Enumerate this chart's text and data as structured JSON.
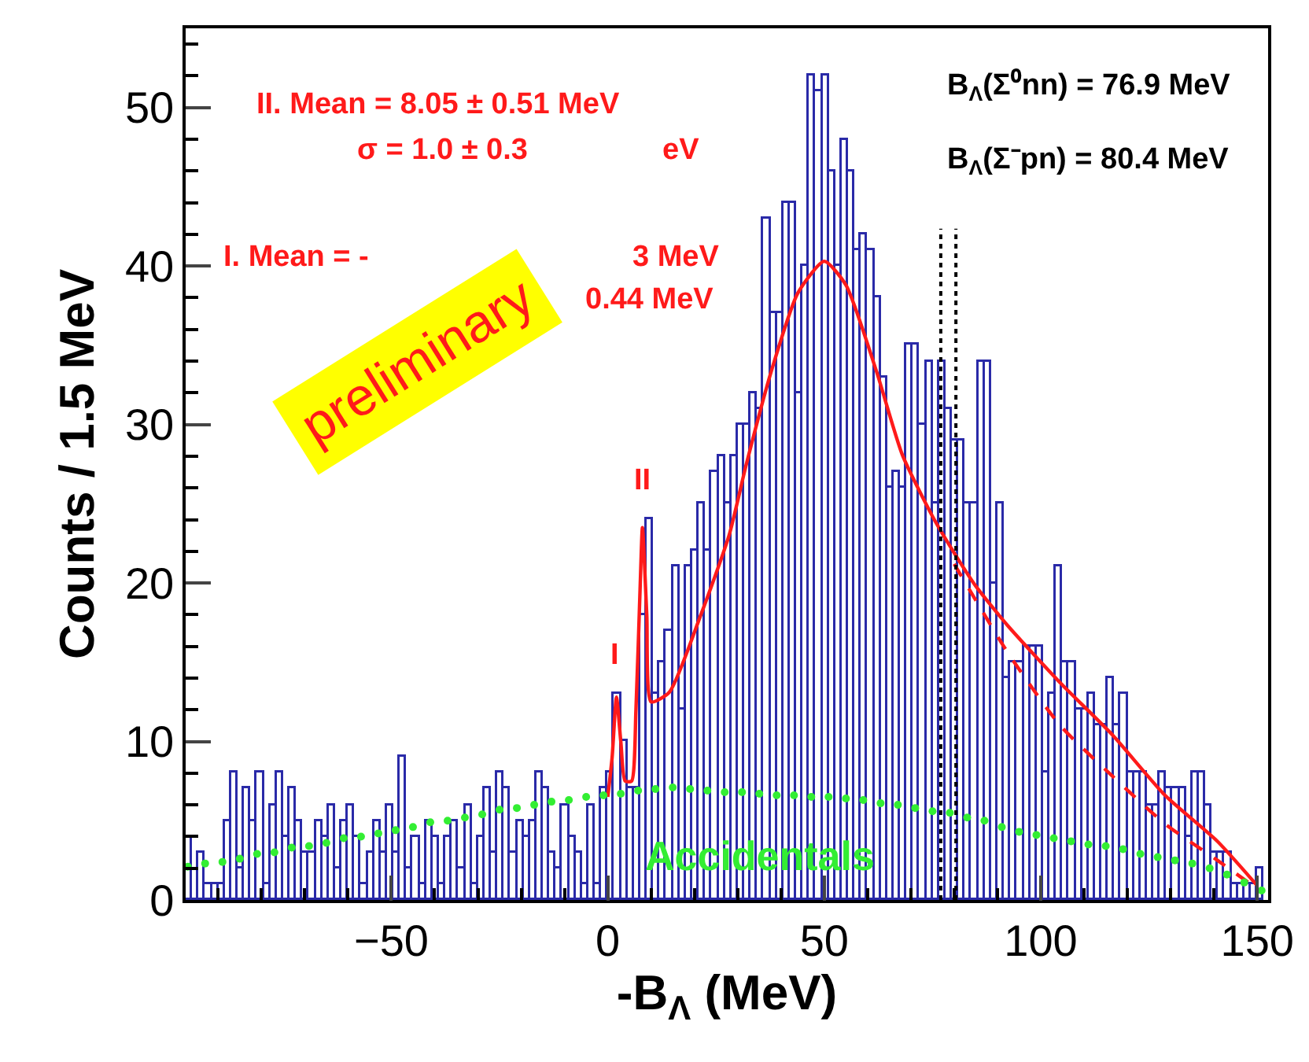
{
  "chart_data": {
    "type": "histogram",
    "xlabel": "-B$_{Λ}$ (MeV)",
    "ylabel": "Counts / 1.5 MeV",
    "bins": [
      -97.5,
      -96,
      -94.5,
      -93,
      -91.5,
      -90,
      -88.5,
      -87,
      -85.5,
      -84,
      -82.5,
      -81,
      -79.5,
      -78,
      -76.5,
      -75,
      -73.5,
      -72,
      -70.5,
      -69,
      -67.5,
      -66,
      -64.5,
      -63,
      -61.5,
      -60,
      -58.5,
      -57,
      -55.5,
      -54,
      -52.5,
      -51,
      -49.5,
      -48,
      -46.5,
      -45,
      -43.5,
      -42,
      -40.5,
      -39,
      -37.5,
      -36,
      -34.5,
      -33,
      -31.5,
      -30,
      -28.5,
      -27,
      -25.5,
      -24,
      -22.5,
      -21,
      -19.5,
      -18,
      -16.5,
      -15,
      -13.5,
      -12,
      -10.5,
      -9,
      -7.5,
      -6,
      -4.5,
      -3,
      -1.5,
      0,
      1.5,
      3,
      4.5,
      6,
      7.5,
      9,
      10.5,
      12,
      13.5,
      15,
      16.5,
      18,
      19.5,
      21,
      22.5,
      24,
      25.5,
      27,
      28.5,
      30,
      31.5,
      33,
      34.5,
      36,
      37.5,
      39,
      40.5,
      42,
      43.5,
      45,
      46.5,
      48,
      49.5,
      51,
      52.5,
      54,
      55.5,
      57,
      58.5,
      60,
      61.5,
      63,
      64.5,
      66,
      67.5,
      69,
      70.5,
      72,
      73.5,
      75,
      76.5,
      78,
      79.5,
      81,
      82.5,
      84,
      85.5,
      87,
      88.5,
      90,
      91.5,
      93,
      94.5,
      96,
      97.5,
      99,
      100.5,
      102,
      103.5,
      105,
      106.5,
      108,
      109.5,
      111,
      112.5,
      114,
      115.5,
      117,
      118.5,
      120,
      121.5,
      123,
      124.5,
      126,
      127.5,
      129,
      130.5,
      132,
      133.5,
      135,
      136.5,
      138,
      139.5,
      141,
      142.5,
      144,
      145.5,
      147,
      148.5,
      150,
      151.5
    ],
    "series": [
      {
        "color": "#2a2aa8",
        "values": [
          4,
          0,
          3,
          1,
          1,
          1,
          5,
          8,
          2,
          7,
          5,
          8,
          1,
          6,
          8,
          4,
          7,
          5,
          3,
          3,
          5,
          4,
          6,
          2,
          5,
          6,
          4,
          1,
          3,
          5,
          3,
          6,
          3,
          9,
          2,
          4,
          1,
          5,
          4,
          1,
          4,
          5,
          2,
          6,
          1,
          4,
          7,
          3,
          8,
          7,
          3,
          5,
          4,
          5,
          8,
          7,
          3,
          2,
          6,
          4,
          3,
          1,
          6,
          1,
          7,
          8,
          13,
          10,
          7,
          7,
          18,
          24,
          13,
          15,
          17,
          21,
          12,
          21,
          22,
          25,
          22,
          27,
          28,
          25,
          28,
          30,
          30,
          32,
          31,
          43,
          37,
          37,
          44,
          44,
          32,
          40,
          52,
          51,
          52,
          46,
          40,
          48,
          46,
          41,
          42,
          41,
          38,
          33,
          26,
          27,
          26,
          35,
          35,
          30,
          34,
          25,
          34,
          31,
          29,
          29,
          25,
          25,
          34,
          34,
          20,
          25,
          14,
          15,
          15,
          16,
          16,
          16,
          8,
          13,
          21,
          15,
          15,
          12,
          12,
          13,
          11,
          11,
          14,
          11,
          13,
          8,
          8,
          8,
          6,
          6,
          8,
          7,
          7,
          7,
          4,
          8,
          8,
          6,
          3,
          3,
          3,
          1,
          1,
          1,
          1,
          2
        ]
      },
      {
        "type": "line",
        "color": "#ff1a1a",
        "line_style": "solid",
        "x": [
          0,
          1,
          2,
          3,
          4,
          5.5,
          6.5,
          7.5,
          8,
          9,
          10,
          14.2,
          21.5,
          28,
          32,
          37.8,
          43.9,
          50,
          55,
          62,
          68,
          75,
          80,
          85,
          92.4,
          104.5,
          116.6,
          128.7,
          140.8,
          150
        ],
        "values": [
          6.5,
          9,
          12.8,
          10,
          7.5,
          7.5,
          12,
          20,
          23.5,
          18,
          12.5,
          13.1,
          18,
          23,
          27.5,
          33.4,
          38.3,
          40.3,
          38.8,
          33.4,
          28.1,
          24.2,
          21.9,
          19.8,
          17.3,
          13.7,
          10.4,
          6.6,
          3.7,
          0.9
        ]
      },
      {
        "type": "line",
        "color": "#ff1a1a",
        "line_style": "dashed",
        "x": [
          80,
          92.4,
          104.5,
          116.6,
          128.7,
          140.8,
          150
        ],
        "values": [
          21.2,
          15.6,
          11,
          7.8,
          4.8,
          2.5,
          0.7
        ]
      },
      {
        "type": "scatter",
        "name": "Accidentals",
        "color": "#33ee33",
        "marker": "circle",
        "x": [
          -97,
          -93,
          -89,
          -85,
          -81,
          -77,
          -73,
          -69,
          -65,
          -61,
          -57,
          -53,
          -49,
          -45,
          -41,
          -37,
          -33,
          -29,
          -25,
          -21,
          -17,
          -13,
          -9,
          -5,
          -1,
          3,
          7,
          11,
          15,
          19,
          23,
          27,
          31,
          35,
          39,
          43,
          47,
          51,
          55,
          59,
          63,
          67,
          71,
          75,
          79,
          83,
          87,
          91,
          95,
          99,
          103,
          107,
          111,
          115,
          119,
          123,
          127,
          131,
          135,
          139,
          143,
          147,
          151
        ],
        "values": [
          2.1,
          2.3,
          2.4,
          2.6,
          2.9,
          3.0,
          3.3,
          3.4,
          3.6,
          3.9,
          4.0,
          4.2,
          4.4,
          4.6,
          4.9,
          5.0,
          5.2,
          5.4,
          5.7,
          5.8,
          6.0,
          6.2,
          6.3,
          6.5,
          6.6,
          6.7,
          6.9,
          7.0,
          7.1,
          7.0,
          6.9,
          6.8,
          6.8,
          6.7,
          6.6,
          6.6,
          6.5,
          6.5,
          6.4,
          6.3,
          6.1,
          6.0,
          5.8,
          5.6,
          5.5,
          5.2,
          5.0,
          4.6,
          4.3,
          4.1,
          3.9,
          3.7,
          3.5,
          3.4,
          3.2,
          2.9,
          2.7,
          2.5,
          2.3,
          2.0,
          1.6,
          1.1,
          0.6
        ]
      }
    ],
    "xlim": [
      -97.5,
      152.5
    ],
    "xticks": [
      {
        "value": -50,
        "label": "−50"
      },
      0,
      50,
      100,
      150
    ],
    "ylim": [
      0,
      55
    ],
    "yticks": [
      0,
      10,
      20,
      30,
      40,
      50
    ],
    "ref_lines": [
      {
        "axis": "x",
        "value": 76.9,
        "color": "#000000",
        "line_style": "dotted"
      },
      {
        "axis": "x",
        "value": 80.4,
        "color": "#000000",
        "line_style": "dotted"
      }
    ],
    "annotations": [
      "II. Mean = 8.05 ± 0.51 MeV",
      "σ = 1.0 ± 0.3",
      "eV",
      "I. Mean = -",
      "3 MeV",
      "0.44 MeV",
      "B$_{Λ}$(Σ⁰nn) = 76.9 MeV",
      "B$_{Λ}$(Σ⁻pn) = 80.4 MeV",
      "preliminary",
      {
        "text": "I",
        "x": 1.5,
        "y": 13
      },
      {
        "text": "II",
        "x": 8,
        "y": 24
      }
    ]
  }
}
